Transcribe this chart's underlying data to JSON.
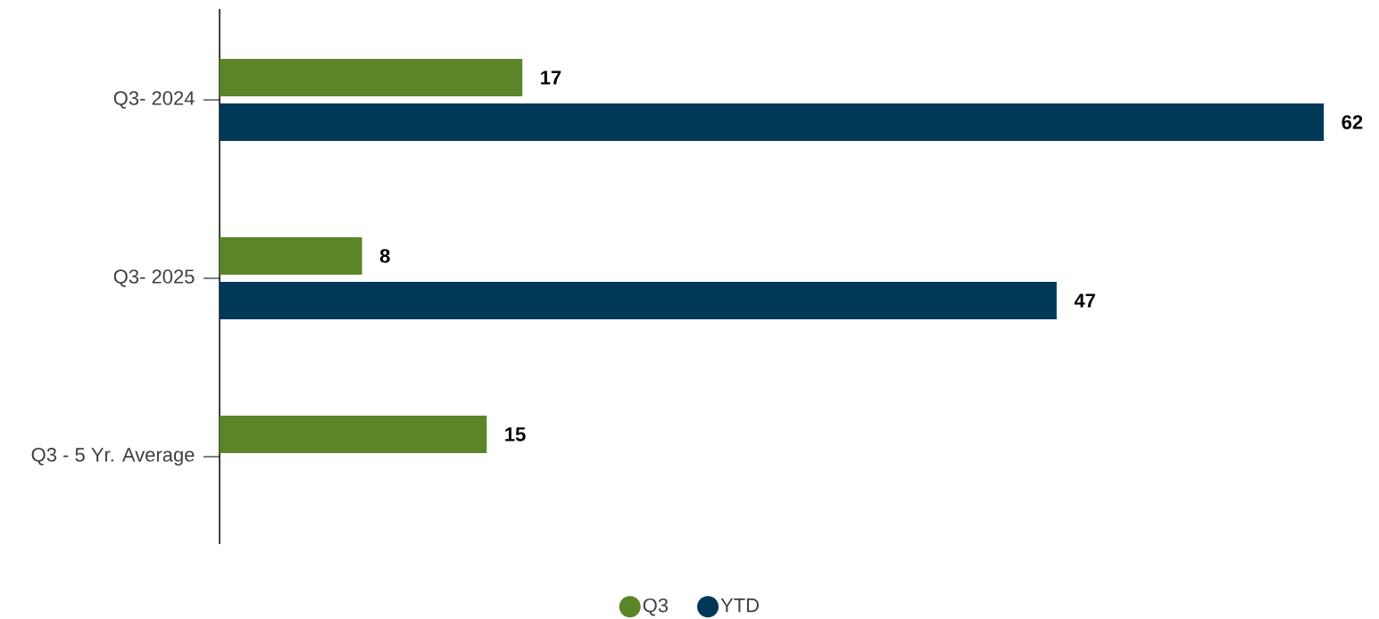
{
  "chart_data": {
    "type": "bar",
    "orientation": "horizontal",
    "categories": [
      "Q3- 2024",
      "Q3- 2025",
      "Q3 - 5 Yr. Average"
    ],
    "series": [
      {
        "name": "Q3",
        "color": "#5b8526",
        "values": [
          17,
          8,
          15
        ]
      },
      {
        "name": "YTD",
        "color": "#003857",
        "values": [
          62,
          47,
          null
        ]
      }
    ],
    "data_labels": true,
    "legend": "bottom"
  }
}
